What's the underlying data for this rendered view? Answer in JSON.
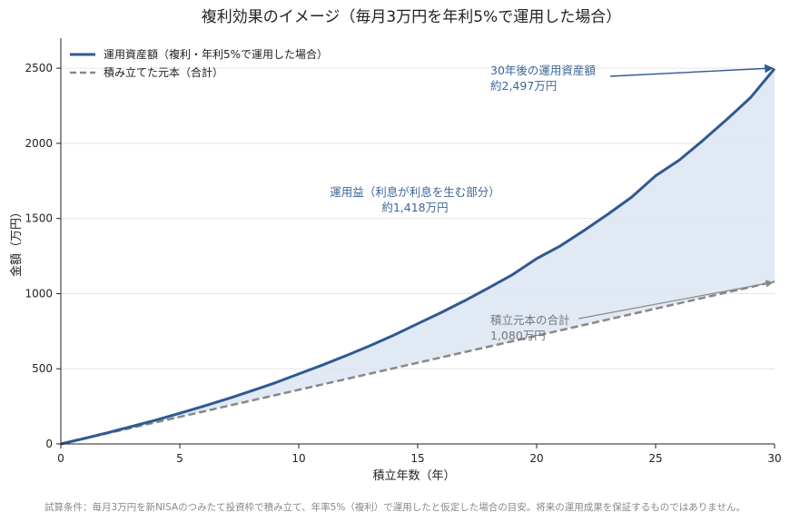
{
  "chart_data": {
    "type": "area",
    "title": "複利効果のイメージ（毎月3万円を年利5%で運用した場合）",
    "xlabel": "積立年数（年）",
    "ylabel": "金額（万円）",
    "xlim": [
      0,
      30
    ],
    "ylim": [
      0,
      2700
    ],
    "x_ticks": [
      0,
      5,
      10,
      15,
      20,
      25,
      30
    ],
    "y_ticks": [
      0,
      500,
      1000,
      1500,
      2000,
      2500
    ],
    "grid": "horizontal",
    "legend_position": "top-left",
    "x": [
      0,
      1,
      2,
      3,
      4,
      5,
      6,
      7,
      8,
      9,
      10,
      11,
      12,
      13,
      14,
      15,
      16,
      17,
      18,
      19,
      20,
      21,
      22,
      23,
      24,
      25,
      26,
      27,
      28,
      29,
      30
    ],
    "series": [
      {
        "name": "運用資産額（複利・年利5%で運用した場合）",
        "style": "solid",
        "color": "#2f5a92",
        "values": [
          0,
          37,
          76,
          117,
          159,
          204,
          251,
          300,
          352,
          406,
          466,
          525,
          588,
          654,
          724,
          800,
          875,
          955,
          1040,
          1128,
          1233,
          1318,
          1421,
          1529,
          1643,
          1784,
          1889,
          2021,
          2160,
          2306,
          2497
        ]
      },
      {
        "name": "積み立てた元本（合計）",
        "style": "dashed",
        "color": "#888888",
        "values": [
          0,
          36,
          72,
          108,
          144,
          180,
          216,
          252,
          288,
          324,
          360,
          396,
          432,
          468,
          504,
          540,
          576,
          612,
          648,
          684,
          720,
          756,
          792,
          828,
          864,
          900,
          936,
          972,
          1008,
          1044,
          1080
        ]
      }
    ],
    "fill_between": {
      "color": "#dce5f2"
    },
    "annotations": [
      {
        "lines": [
          "30年後の運用資産額",
          "約2,497万円"
        ],
        "target_x": 30,
        "target_y": 2497,
        "color": "#3d6698"
      },
      {
        "lines": [
          "運用益（利息が利息を生む部分）",
          "約1,418万円"
        ],
        "color": "#3d6698"
      },
      {
        "lines": [
          "積立元本の合計",
          "1,080万円"
        ],
        "target_x": 30,
        "target_y": 1080,
        "color": "#777777"
      }
    ],
    "footnote": "試算条件：毎月3万円を新NISAのつみたて投資枠で積み立て、年率5%（複利）で運用したと仮定した場合の目安。将来の運用成果を保証するものではありません。"
  }
}
